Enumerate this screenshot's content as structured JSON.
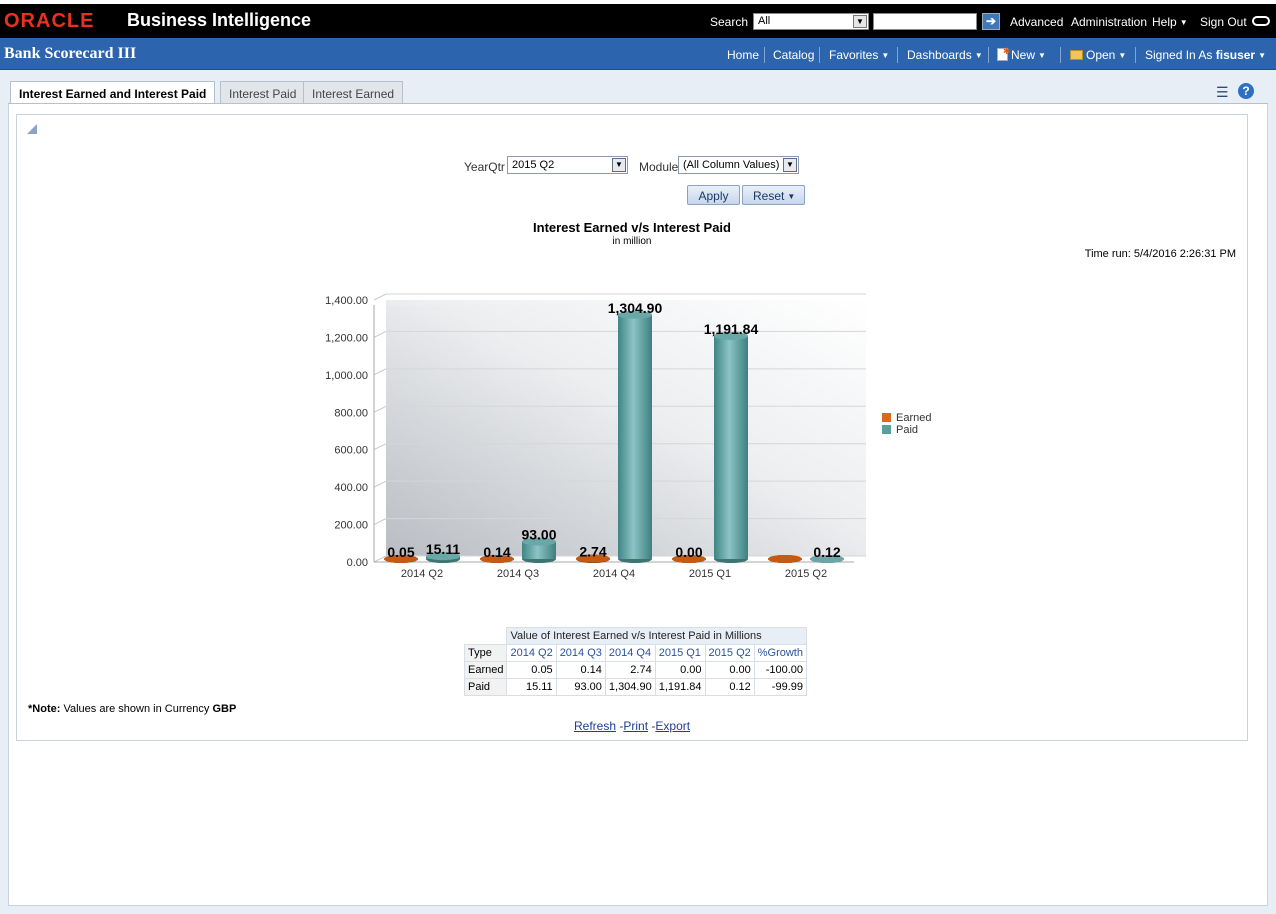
{
  "header": {
    "brand": "ORACLE",
    "product": "Business Intelligence",
    "search_label": "Search",
    "search_scope": "All",
    "search_value": "",
    "links": [
      "Advanced",
      "Administration",
      "Help",
      "Sign Out"
    ]
  },
  "dashboard": {
    "title": "Bank Scorecard III",
    "nav": {
      "home": "Home",
      "catalog": "Catalog",
      "favorites": "Favorites",
      "dashboards": "Dashboards",
      "new": "New",
      "open": "Open",
      "signed_in_as": "Signed In As",
      "user": "fisuser"
    }
  },
  "tabs": [
    {
      "label": "Interest Earned and Interest Paid",
      "active": true
    },
    {
      "label": "Interest Paid",
      "active": false
    },
    {
      "label": "Interest Earned",
      "active": false
    }
  ],
  "prompts": {
    "yearqtr_label": "YearQtr",
    "yearqtr_value": "2015 Q2",
    "module_label": "Module",
    "module_value": "(All Column Values)",
    "apply_label": "Apply",
    "reset_label": "Reset"
  },
  "time_run": "Time run: 5/4/2016 2:26:31 PM",
  "chart_data": {
    "type": "bar",
    "title": "Interest Earned v/s Interest Paid",
    "subtitle": "in million",
    "categories": [
      "2014 Q2",
      "2014 Q3",
      "2014 Q4",
      "2015 Q1",
      "2015 Q2"
    ],
    "series": [
      {
        "name": "Earned",
        "values": [
          0.05,
          0.14,
          2.74,
          0.0,
          0.0
        ],
        "labels": [
          "0.05",
          "0.14",
          "2.74",
          "0.00",
          ""
        ],
        "color": "#d9691e"
      },
      {
        "name": "Paid",
        "values": [
          15.11,
          93.0,
          1304.9,
          1191.84,
          0.12
        ],
        "labels": [
          "15.11",
          "93.00",
          "1,304.90",
          "1,191.84",
          "0.12"
        ],
        "color": "#5b9e9e"
      }
    ],
    "ylim": [
      0,
      1400
    ],
    "yticks": [
      "0.00",
      "200.00",
      "400.00",
      "600.00",
      "800.00",
      "1,000.00",
      "1,200.00",
      "1,400.00"
    ],
    "legend": "right"
  },
  "table": {
    "caption": "Value of Interest Earned v/s Interest Paid in Millions",
    "columns": [
      "Type",
      "2014 Q2",
      "2014 Q3",
      "2014 Q4",
      "2015 Q1",
      "2015 Q2",
      "%Growth"
    ],
    "rows": [
      [
        "Earned",
        "0.05",
        "0.14",
        "2.74",
        "0.00",
        "0.00",
        "-100.00"
      ],
      [
        "Paid",
        "15.11",
        "93.00",
        "1,304.90",
        "1,191.84",
        "0.12",
        "-99.99"
      ]
    ]
  },
  "note": {
    "prefix": "*Note:",
    "text": "Values are shown in Currency",
    "currency": "GBP"
  },
  "footer_links": [
    "Refresh",
    "Print",
    "Export"
  ],
  "colors": {
    "topbar": "#000000",
    "header": "#2c64ad",
    "oracle_red": "#e8321f"
  }
}
